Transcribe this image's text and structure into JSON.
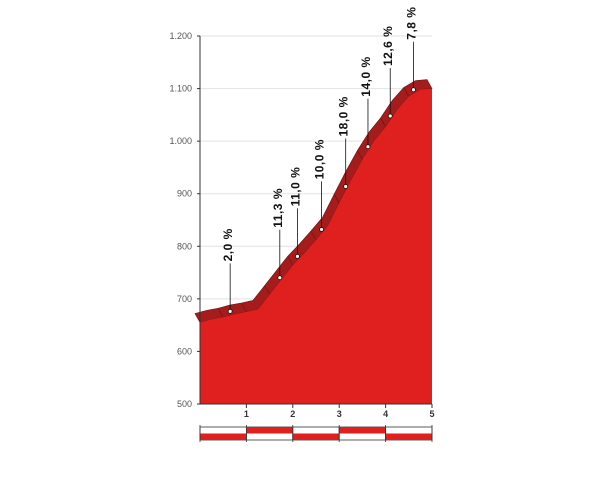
{
  "chart_data": {
    "type": "area",
    "title": "",
    "xlabel": "",
    "ylabel": "",
    "xlim": [
      0,
      5
    ],
    "ylim": [
      500,
      1200
    ],
    "y_ticks": [
      "500",
      "600",
      "700",
      "800",
      "900",
      "1.000",
      "1.100",
      "1.200"
    ],
    "y_tick_values": [
      500,
      600,
      700,
      800,
      900,
      1000,
      1100,
      1200
    ],
    "x_ticks": [
      "1",
      "2",
      "3",
      "4",
      "5"
    ],
    "x_tick_values": [
      1,
      2,
      3,
      4,
      5
    ],
    "grid": true,
    "legend": "none",
    "series": [
      {
        "x": [
          0,
          0.25,
          0.5,
          0.75,
          1.0,
          1.25,
          1.5,
          1.75,
          2.0,
          2.25,
          2.5,
          2.75,
          3.0,
          3.25,
          3.5,
          3.75,
          4.0,
          4.25,
          4.5,
          4.75,
          5.0
        ],
        "y": [
          655,
          661,
          665,
          671,
          675,
          680,
          708,
          736,
          764,
          787,
          812,
          838,
          882,
          925,
          965,
          1000,
          1027,
          1060,
          1085,
          1098,
          1100
        ]
      }
    ],
    "gradients": [
      {
        "label": "2,0 %",
        "x": 0.65,
        "highlight": false
      },
      {
        "label": "11,3 %",
        "x": 1.72,
        "highlight": false
      },
      {
        "label": "11,0 %",
        "x": 2.1,
        "highlight": false
      },
      {
        "label": "10,0 %",
        "x": 2.62,
        "highlight": false
      },
      {
        "label": "18,0 %",
        "x": 3.14,
        "highlight": true
      },
      {
        "label": "14,0 %",
        "x": 3.62,
        "highlight": false
      },
      {
        "label": "12,6 %",
        "x": 4.1,
        "highlight": false
      },
      {
        "label": "7,8 %",
        "x": 4.6,
        "highlight": false
      }
    ],
    "colors": {
      "fill": "#e01f1f",
      "band": "#a51c1c",
      "band_edge": "#6e1010",
      "highlight": "#e01f1f",
      "label": "#111111",
      "grid": "#e2e2e2",
      "axis": "#333333"
    }
  }
}
